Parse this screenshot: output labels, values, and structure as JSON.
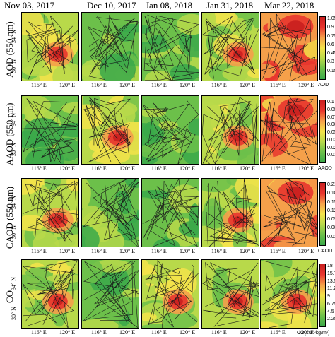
{
  "dates": [
    "Nov 03, 2017",
    "Dec 10, 2017",
    "Jan 08, 2018",
    "Jan 31, 2018",
    "Mar 22, 2018"
  ],
  "rows": [
    {
      "label": "AOD (550 nm)",
      "colorbar_ticks": [
        "1.05",
        "0.9",
        "0.75",
        "0.6",
        "0.45",
        "0.3",
        "0.15"
      ],
      "colorbar_title": "AOD",
      "intensity": [
        0.55,
        0.35,
        0.3,
        0.45,
        0.9
      ]
    },
    {
      "label": "AAOD (550 nm)",
      "colorbar_ticks": [
        "0.1",
        "0.0875",
        "0.075",
        "0.0625",
        "0.05",
        "0.0375",
        "0.025",
        "0.0125"
      ],
      "colorbar_title": "AAOD",
      "intensity": [
        0.4,
        0.5,
        0.3,
        0.45,
        0.9
      ]
    },
    {
      "label": "CAOD (550 nm)",
      "colorbar_ticks": [
        "0.21",
        "0.18",
        "0.15",
        "0.12",
        "0.09",
        "0.06",
        "0.03"
      ],
      "colorbar_title": "CAOD",
      "intensity": [
        0.6,
        0.4,
        0.3,
        0.45,
        0.85
      ]
    },
    {
      "label": "CO",
      "colorbar_ticks": [
        "18",
        "15.75",
        "13.5",
        "11.25",
        "9",
        "6.75",
        "4.5",
        "2.25"
      ],
      "colorbar_title": "CO(10⁻³kg/m²)",
      "intensity": [
        0.45,
        0.3,
        0.45,
        0.5,
        0.5
      ]
    }
  ],
  "axis_labels": {
    "x_left": "116° E",
    "x_right": "120° E",
    "y_top": "34° N",
    "y_bottom": "30° N"
  },
  "colors": {
    "dark_green": "#3aa84a",
    "green": "#6cc04a",
    "yellow_green": "#b8d94a",
    "yellow": "#f3e34a",
    "orange": "#f5a04a",
    "red": "#e8352e",
    "dark_red": "#c91f1f"
  }
}
